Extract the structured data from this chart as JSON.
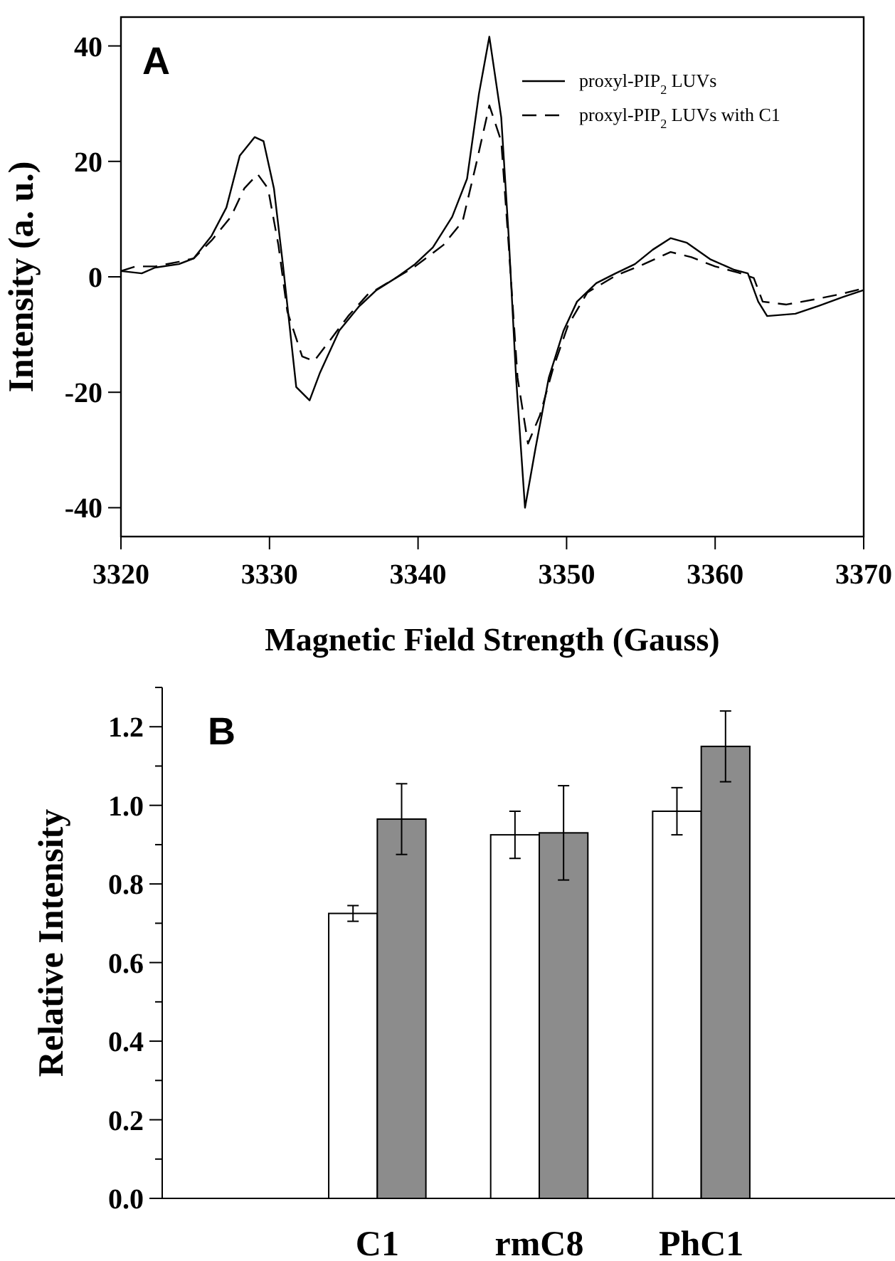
{
  "chart_data": [
    {
      "type": "line",
      "xlabel": "Magnetic Field Strength (Gauss)",
      "ylabel": "Intensity (a. u.)",
      "annotations": [
        "A"
      ],
      "xlim": [
        3320,
        3370
      ],
      "ylim": [
        -45,
        45
      ],
      "xticks": [
        3320,
        3330,
        3340,
        3350,
        3360,
        3370
      ],
      "yticks": [
        -40,
        -20,
        0,
        20,
        40
      ],
      "legend": "top right",
      "series": [
        {
          "name": "proxyl-PIP$_{2}$ LUVs",
          "color": "#000000",
          "line_style": "solid",
          "x": [
            3320,
            3321.4,
            3322.3,
            3323.9,
            3324.9,
            3326.1,
            3327.1,
            3328.0,
            3329.0,
            3329.6,
            3330.3,
            3330.9,
            3331.8,
            3332.7,
            3333.4,
            3334.7,
            3336.0,
            3337.2,
            3338.5,
            3339.8,
            3341.0,
            3342.3,
            3343.3,
            3344.1,
            3344.8,
            3345.6,
            3346.1,
            3346.6,
            3347.2,
            3347.9,
            3348.8,
            3349.8,
            3350.7,
            3352.0,
            3353.3,
            3354.6,
            3355.8,
            3357.0,
            3358.1,
            3359.7,
            3361.3,
            3362.2,
            3362.9,
            3363.5,
            3365.4,
            3367.0,
            3368.6,
            3370
          ],
          "values": [
            1.0,
            0.6,
            1.6,
            2.2,
            3.2,
            7.1,
            12,
            21,
            24.2,
            23.5,
            15.3,
            2.2,
            -19.1,
            -21.4,
            -16.6,
            -9.3,
            -5.2,
            -2.3,
            -0.2,
            2.2,
            5.1,
            10.4,
            17,
            31.7,
            41.6,
            27.6,
            7.1,
            -17.5,
            -40,
            -29.8,
            -17.5,
            -9.3,
            -4.3,
            -1.1,
            0.6,
            2.2,
            4.7,
            6.7,
            5.9,
            3.0,
            1.2,
            0.6,
            -4.3,
            -6.8,
            -6.4,
            -5.0,
            -3.5,
            -2.3
          ]
        },
        {
          "name": "proxyl-PIP$_{2}$ LUVs with C1",
          "color": "#000000",
          "line_style": "dashed",
          "x": [
            3320,
            3321.0,
            3322.3,
            3323.9,
            3324.9,
            3326.1,
            3327.4,
            3328.3,
            3329.2,
            3329.9,
            3330.6,
            3331.2,
            3332.2,
            3333.0,
            3334.1,
            3335.3,
            3336.6,
            3338.5,
            3339.8,
            3341.7,
            3343.0,
            3343.9,
            3344.8,
            3345.6,
            3346.1,
            3346.7,
            3347.4,
            3348.2,
            3349.1,
            3350.1,
            3351.4,
            3353.3,
            3355.2,
            3357.0,
            3358.4,
            3360.0,
            3361.6,
            3362.6,
            3363.2,
            3364.8,
            3366.7,
            3368.6,
            3370
          ],
          "values": [
            1.0,
            1.8,
            1.8,
            2.6,
            3.2,
            6.3,
            10.4,
            15.3,
            17.8,
            15.3,
            5.5,
            -6.0,
            -13.8,
            -14.6,
            -10.9,
            -6.8,
            -3.1,
            -0.2,
            1.8,
            5.5,
            9.6,
            19.4,
            29.7,
            23.5,
            5.5,
            -17.5,
            -28.9,
            -24,
            -15.8,
            -8.4,
            -2.7,
            0.2,
            2.2,
            4.3,
            3.4,
            1.8,
            0.7,
            -0.2,
            -4.3,
            -4.8,
            -3.9,
            -2.9,
            -2.0
          ]
        }
      ]
    },
    {
      "type": "bar",
      "ylabel": "Relative Intensity",
      "annotations": [
        "B"
      ],
      "categories": [
        "C1",
        "rmC8",
        "PhC1"
      ],
      "ylim": [
        0,
        1.3
      ],
      "yticks": [
        {
          "value": 0,
          "label": "0.0"
        },
        {
          "value": 0.1,
          "label": null
        },
        {
          "value": 0.2,
          "label": "0.2"
        },
        {
          "value": 0.3,
          "label": null
        },
        {
          "value": 0.4,
          "label": "0.4"
        },
        {
          "value": 0.5,
          "label": null
        },
        {
          "value": 0.6,
          "label": "0.6"
        },
        {
          "value": 0.7,
          "label": null
        },
        {
          "value": 0.8,
          "label": "0.8"
        },
        {
          "value": 0.9,
          "label": null
        },
        {
          "value": 1.0,
          "label": "1.0"
        },
        {
          "value": 1.1,
          "label": null
        },
        {
          "value": 1.2,
          "label": "1.2"
        },
        {
          "value": 1.3,
          "label": null
        }
      ],
      "series": [
        {
          "color": "#ffffff",
          "values": [
            0.725,
            0.925,
            0.985
          ],
          "errors": [
            0.02,
            0.06,
            0.06
          ]
        },
        {
          "color": "#8c8c8c",
          "values": [
            0.965,
            0.93,
            1.15
          ],
          "errors": [
            0.09,
            0.12,
            0.09
          ]
        }
      ]
    }
  ]
}
